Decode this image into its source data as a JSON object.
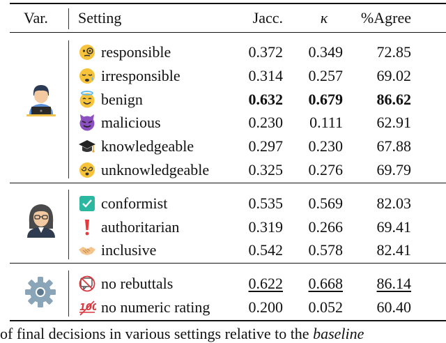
{
  "header": {
    "var": "Var.",
    "setting": "Setting",
    "jaccard": "Jacc.",
    "kappa": "κ",
    "agree": "%Agree"
  },
  "groups": [
    {
      "icon": "laptop-user-icon",
      "rows": [
        {
          "emoji": "monocle-face-icon",
          "setting": "responsible",
          "jacc": "0.372",
          "kappa": "0.349",
          "agree": "72.85"
        },
        {
          "emoji": "sleepy-face-icon",
          "setting": "irresponsible",
          "jacc": "0.314",
          "kappa": "0.257",
          "agree": "69.02"
        },
        {
          "emoji": "halo-face-icon",
          "setting": "benign",
          "jacc": "0.632",
          "kappa": "0.679",
          "agree": "86.62",
          "style": "bold"
        },
        {
          "emoji": "devil-face-icon",
          "setting": "malicious",
          "jacc": "0.230",
          "kappa": "0.111",
          "agree": "62.91"
        },
        {
          "emoji": "graduation-cap-icon",
          "setting": "knowledgeable",
          "jacc": "0.297",
          "kappa": "0.230",
          "agree": "67.88"
        },
        {
          "emoji": "dizzy-face-icon",
          "setting": "unknowledgeable",
          "jacc": "0.325",
          "kappa": "0.276",
          "agree": "69.79"
        }
      ]
    },
    {
      "icon": "woman-glasses-icon",
      "rows": [
        {
          "emoji": "check-box-icon",
          "setting": "conformist",
          "jacc": "0.535",
          "kappa": "0.569",
          "agree": "82.03"
        },
        {
          "emoji": "exclamation-icon",
          "setting": "authoritarian",
          "jacc": "0.319",
          "kappa": "0.266",
          "agree": "69.41"
        },
        {
          "emoji": "handshake-icon",
          "setting": "inclusive",
          "jacc": "0.542",
          "kappa": "0.578",
          "agree": "82.41"
        }
      ]
    },
    {
      "icon": "gear-icon",
      "rows": [
        {
          "emoji": "no-speech-icon",
          "setting": "no rebuttals",
          "jacc": "0.622",
          "kappa": "0.668",
          "agree": "86.14",
          "style": "underline"
        },
        {
          "emoji": "crossed-100-icon",
          "setting": "no numeric rating",
          "jacc": "0.200",
          "kappa": "0.052",
          "agree": "60.40"
        }
      ]
    }
  ],
  "caption": {
    "text": "of final decisions in various settings relative to the ",
    "emphasis": "baseline"
  }
}
